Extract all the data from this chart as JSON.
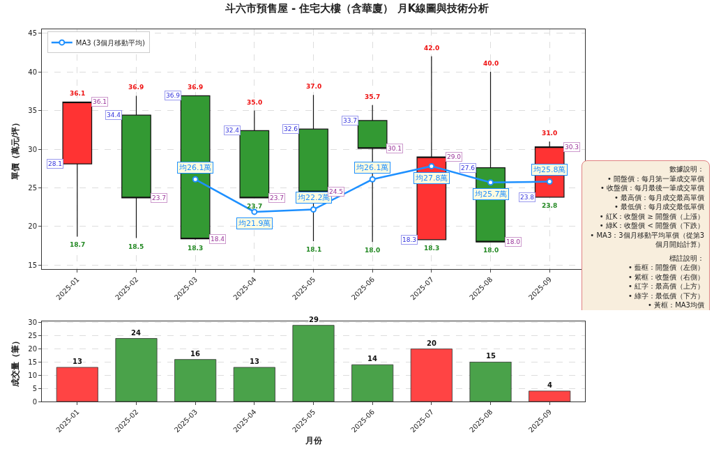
{
  "chart_data": [
    {
      "type": "candlestick",
      "title": "斗六市預售屋 - 住宅大樓（含華廈） 月K線圖與技術分析",
      "ylabel": "單價（萬元/坪）",
      "categories": [
        "2025-01",
        "2025-02",
        "2025-03",
        "2025-04",
        "2025-05",
        "2025-06",
        "2025-07",
        "2025-08",
        "2025-09"
      ],
      "ohlc": [
        [
          28.1,
          36.1,
          18.7,
          36.1
        ],
        [
          34.4,
          36.9,
          18.5,
          23.7
        ],
        [
          36.9,
          36.9,
          18.3,
          18.4
        ],
        [
          32.4,
          35.0,
          23.7,
          23.7
        ],
        [
          32.6,
          37.0,
          18.1,
          24.5
        ],
        [
          33.7,
          35.7,
          18.0,
          30.1
        ],
        [
          18.3,
          42.0,
          18.3,
          29.0
        ],
        [
          27.6,
          40.0,
          18.0,
          18.0
        ],
        [
          23.8,
          31.0,
          23.8,
          30.3
        ]
      ],
      "colors": [
        "#ff3333",
        "#339933",
        "#339933",
        "#339933",
        "#339933",
        "#339933",
        "#ff3333",
        "#339933",
        "#ff3333"
      ],
      "series": [
        {
          "name": "MA3 (3個月移動平均)",
          "type": "line",
          "color": "#1e90ff",
          "values": [
            null,
            null,
            26.1,
            21.9,
            22.2,
            26.1,
            27.8,
            25.7,
            25.8
          ],
          "value_labels": [
            null,
            null,
            "均26.1萬",
            "均21.9萬",
            "均22.2萬",
            "均26.1萬",
            "均27.8萬",
            "均25.7萬",
            "均25.8萬"
          ]
        }
      ],
      "marker": "circle",
      "ylim": [
        14.5,
        45.5
      ],
      "yticks": [
        15,
        20,
        25,
        30,
        35,
        40,
        45
      ],
      "grid": true,
      "legend": "top left",
      "annotations": [
        "數據說明：\n• 開盤價：每月第一筆成交單價\n• 收盤價：每月最後一筆成交單價\n• 最高價：每月成交最高單價\n• 最低價：每月成交最低單價\n• 紅K：收盤價 ≥ 開盤價（上漲）\n• 綠K：收盤價 < 開盤價（下跌）\n• MA3：3個月移動平均單價（從第3個月開始計算）",
        "標註說明：\n• 藍框：開盤價（左側）\n• 紫框：收盤價（右側）\n• 紅字：最高價（上方）\n• 綠字：最低價（下方）\n• 黃框：MA3均價",
        {
          "text": "28.1",
          "x": "2025-01",
          "y": 28.1
        },
        {
          "text": "36.1",
          "x": "2025-01",
          "y": 36.1
        },
        {
          "text": "18.7",
          "x": "2025-01",
          "y": 18.7
        },
        {
          "text": "36.1",
          "x": "2025-01",
          "y": 36.1
        },
        {
          "text": "34.4",
          "x": "2025-02",
          "y": 34.4
        },
        {
          "text": "36.9",
          "x": "2025-02",
          "y": 36.9
        },
        {
          "text": "18.5",
          "x": "2025-02",
          "y": 18.5
        },
        {
          "text": "23.7",
          "x": "2025-02",
          "y": 23.7
        },
        {
          "text": "36.9",
          "x": "2025-03",
          "y": 36.9
        },
        {
          "text": "36.9",
          "x": "2025-03",
          "y": 36.9
        },
        {
          "text": "18.3",
          "x": "2025-03",
          "y": 18.3
        },
        {
          "text": "18.4",
          "x": "2025-03",
          "y": 18.4
        },
        {
          "text": "32.4",
          "x": "2025-04",
          "y": 32.4
        },
        {
          "text": "35.0",
          "x": "2025-04",
          "y": 35.0
        },
        {
          "text": "23.7",
          "x": "2025-04",
          "y": 23.7
        },
        {
          "text": "23.7",
          "x": "2025-04",
          "y": 23.7
        },
        {
          "text": "32.6",
          "x": "2025-05",
          "y": 32.6
        },
        {
          "text": "37.0",
          "x": "2025-05",
          "y": 37.0
        },
        {
          "text": "18.1",
          "x": "2025-05",
          "y": 18.1
        },
        {
          "text": "24.5",
          "x": "2025-05",
          "y": 24.5
        },
        {
          "text": "33.7",
          "x": "2025-06",
          "y": 33.7
        },
        {
          "text": "35.7",
          "x": "2025-06",
          "y": 35.7
        },
        {
          "text": "18.0",
          "x": "2025-06",
          "y": 18.0
        },
        {
          "text": "30.1",
          "x": "2025-06",
          "y": 30.1
        },
        {
          "text": "18.3",
          "x": "2025-07",
          "y": 18.3
        },
        {
          "text": "42.0",
          "x": "2025-07",
          "y": 42.0
        },
        {
          "text": "18.3",
          "x": "2025-07",
          "y": 18.3
        },
        {
          "text": "29.0",
          "x": "2025-07",
          "y": 29.0
        },
        {
          "text": "27.6",
          "x": "2025-08",
          "y": 27.6
        },
        {
          "text": "40.0",
          "x": "2025-08",
          "y": 40.0
        },
        {
          "text": "18.0",
          "x": "2025-08",
          "y": 18.0
        },
        {
          "text": "18.0",
          "x": "2025-08",
          "y": 18.0
        },
        {
          "text": "23.8",
          "x": "2025-09",
          "y": 23.8
        },
        {
          "text": "31.0",
          "x": "2025-09",
          "y": 31.0
        },
        {
          "text": "23.8",
          "x": "2025-09",
          "y": 23.8
        },
        {
          "text": "30.3",
          "x": "2025-09",
          "y": 30.3
        }
      ]
    },
    {
      "type": "bar",
      "xlabel": "月份",
      "ylabel": "成交量（筆）",
      "categories": [
        "2025-01",
        "2025-02",
        "2025-03",
        "2025-04",
        "2025-05",
        "2025-06",
        "2025-07",
        "2025-08",
        "2025-09"
      ],
      "values": [
        13,
        24,
        16,
        13,
        29,
        14,
        20,
        15,
        4
      ],
      "colors": [
        "#ff4444",
        "#4aa24a",
        "#4aa24a",
        "#4aa24a",
        "#4aa24a",
        "#4aa24a",
        "#ff4444",
        "#4aa24a",
        "#ff4444"
      ],
      "ylim": [
        0,
        30.5
      ],
      "yticks": [
        0,
        5,
        10,
        15,
        20,
        25,
        30
      ],
      "grid": "y",
      "data_labels": true
    }
  ]
}
